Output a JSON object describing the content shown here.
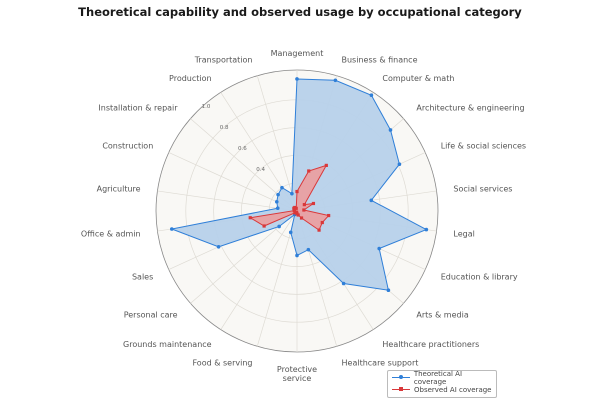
{
  "chart_data": {
    "type": "radar",
    "title": "Theoretical capability and observed usage by occupational category",
    "categories": [
      "Management",
      "Business & finance",
      "Computer & math",
      "Architecture & engineering",
      "Life & social sciences",
      "Social services",
      "Legal",
      "Education & library",
      "Arts & media",
      "Healthcare practitioners",
      "Healthcare support",
      "Protective service",
      "Food & serving",
      "Grounds maintenance",
      "Personal care",
      "Sales",
      "Office & admin",
      "Agriculture",
      "Construction",
      "Installation & repair",
      "Production",
      "Transportation"
    ],
    "radial_ticks": [
      "0.4",
      "0.6",
      "0.8",
      "1.0"
    ],
    "rlim": [
      0,
      1.0
    ],
    "grid": true,
    "legend_position": "bottom-right",
    "series": [
      {
        "name": "Theoretical AI coverage",
        "color": "#2f7fd8",
        "fill": "#b7d1ea",
        "marker": "circle",
        "values": [
          0.95,
          0.98,
          0.99,
          0.89,
          0.81,
          0.54,
          0.94,
          0.65,
          0.87,
          0.62,
          0.29,
          0.32,
          0.16,
          0.03,
          0.17,
          0.62,
          0.91,
          0.14,
          0.16,
          0.18,
          0.2,
          0.13
        ]
      },
      {
        "name": "Observed AI coverage",
        "color": "#d9383a",
        "fill": "#ef9a9a",
        "marker": "square",
        "values": [
          0.14,
          0.3,
          0.39,
          0.07,
          0.13,
          0.05,
          0.23,
          0.2,
          0.21,
          0.06,
          0.03,
          0.02,
          0.01,
          0.01,
          0.02,
          0.26,
          0.34,
          0.02,
          0.02,
          0.03,
          0.03,
          0.02
        ]
      }
    ]
  }
}
